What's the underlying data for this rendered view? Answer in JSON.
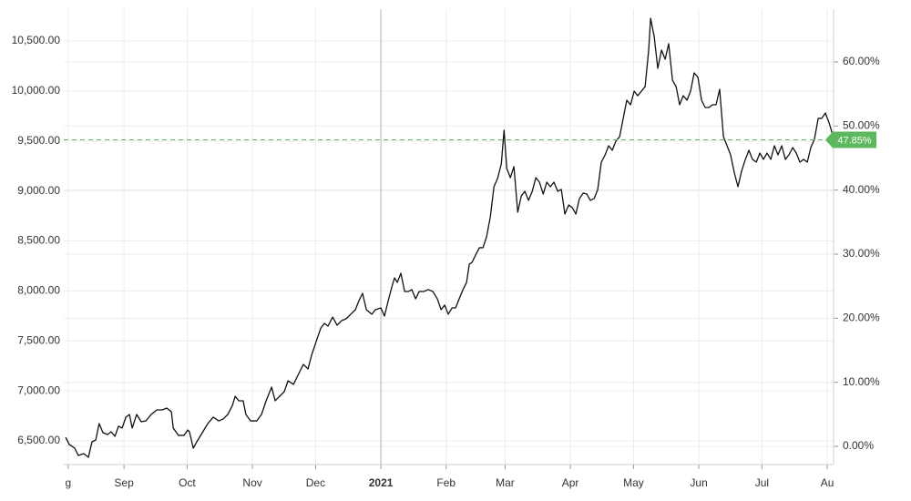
{
  "chart_data": {
    "type": "line",
    "xlim": [
      2.4,
      368
    ],
    "ylim": [
      6263,
      10819
    ],
    "y2lim": [
      -2.84,
      68.25
    ],
    "grid": true,
    "xticks": [
      {
        "value": 4.5,
        "label": "g"
      },
      {
        "value": 31,
        "label": "Sep"
      },
      {
        "value": 61,
        "label": "Oct"
      },
      {
        "value": 92,
        "label": "Nov"
      },
      {
        "value": 122,
        "label": "Dec"
      },
      {
        "value": 153,
        "label": "2021"
      },
      {
        "value": 184,
        "label": "Feb"
      },
      {
        "value": 212,
        "label": "Mar"
      },
      {
        "value": 243,
        "label": "Apr"
      },
      {
        "value": 273,
        "label": "May"
      },
      {
        "value": 304,
        "label": "Jun"
      },
      {
        "value": 334,
        "label": "Jul"
      },
      {
        "value": 365,
        "label": "Au"
      }
    ],
    "yticks": [
      {
        "value": 6500,
        "label": "6,500.00"
      },
      {
        "value": 7000,
        "label": "7,000.00"
      },
      {
        "value": 7500,
        "label": "7,500.00"
      },
      {
        "value": 8000,
        "label": "8,000.00"
      },
      {
        "value": 8500,
        "label": "8,500.00"
      },
      {
        "value": 9000,
        "label": "9,000.00"
      },
      {
        "value": 9500,
        "label": "9,500.00"
      },
      {
        "value": 10000,
        "label": "10,000.00"
      },
      {
        "value": 10500,
        "label": "10,500.00"
      }
    ],
    "y2ticks": [
      {
        "value": 0,
        "label": "0.00%"
      },
      {
        "value": 10,
        "label": "10.00%"
      },
      {
        "value": 20,
        "label": "20.00%"
      },
      {
        "value": 30,
        "label": "30.00%"
      },
      {
        "value": 40,
        "label": "40.00%"
      },
      {
        "value": 50,
        "label": "50.00%"
      },
      {
        "value": 60,
        "label": "60.00%"
      }
    ],
    "reference": {
      "value": 47.85,
      "label": "47.85%",
      "axis": "y2",
      "color": "#5cb85c"
    },
    "x": [
      3.3,
      5.0,
      7.6,
      9.3,
      11.9,
      14.1,
      15.8,
      17.6,
      19.2,
      21.0,
      23.2,
      24.9,
      26.7,
      28.4,
      30.1,
      31.9,
      33.6,
      34.9,
      37.0,
      39.2,
      41.4,
      43.9,
      46.6,
      49.2,
      51.3,
      53.5,
      54.4,
      56.9,
      59.5,
      61.3,
      62.1,
      63.9,
      65.6,
      68.2,
      70.8,
      73.4,
      76.0,
      78.1,
      80.3,
      82.5,
      83.8,
      85.5,
      87.6,
      88.9,
      91.1,
      94.1,
      96.3,
      98.5,
      101.1,
      102.8,
      104.9,
      107.1,
      108.9,
      111.5,
      113.6,
      116.2,
      118.4,
      120.1,
      122.7,
      124.5,
      126.2,
      127.9,
      130.1,
      132.2,
      134.4,
      136.5,
      138.7,
      140.9,
      142.6,
      144.3,
      146.1,
      148.7,
      150.4,
      153.0,
      154.7,
      156.5,
      158.2,
      159.5,
      160.8,
      162.5,
      164.3,
      166.0,
      167.7,
      169.5,
      171.2,
      173.4,
      175.5,
      177.7,
      179.8,
      181.6,
      183.3,
      185.0,
      186.8,
      188.5,
      190.2,
      192.0,
      193.7,
      195.0,
      196.3,
      198.0,
      199.8,
      201.5,
      203.2,
      205.0,
      206.7,
      208.4,
      210.2,
      211.5,
      212.8,
      214.5,
      216.2,
      218.0,
      219.7,
      221.4,
      223.1,
      224.9,
      226.6,
      228.3,
      230.1,
      231.8,
      233.5,
      235.2,
      237.0,
      238.7,
      240.4,
      242.2,
      243.9,
      245.6,
      247.3,
      249.1,
      250.8,
      252.5,
      254.3,
      256.0,
      257.7,
      259.5,
      261.2,
      262.9,
      264.6,
      266.4,
      268.1,
      269.8,
      271.6,
      273.3,
      275.0,
      276.8,
      278.5,
      280.2,
      281.1,
      282.8,
      284.5,
      286.3,
      288.0,
      289.7,
      291.5,
      293.2,
      294.9,
      296.6,
      298.4,
      300.1,
      301.8,
      303.6,
      305.3,
      307.0,
      308.8,
      310.5,
      312.2,
      313.9,
      315.7,
      317.4,
      319.1,
      320.9,
      322.6,
      324.3,
      326.1,
      327.8,
      329.5,
      331.3,
      333.0,
      334.7,
      336.4,
      338.2,
      339.9,
      341.6,
      343.4,
      345.1,
      346.8,
      348.6,
      350.3,
      352.0,
      353.8,
      355.5,
      357.2,
      358.9,
      360.7,
      362.4,
      364.1,
      365.9,
      367.6
    ],
    "series": [
      {
        "color": "#111111",
        "values": [
          6536,
          6464,
          6427,
          6354,
          6372,
          6336,
          6491,
          6509,
          6673,
          6582,
          6564,
          6591,
          6546,
          6646,
          6628,
          6737,
          6764,
          6628,
          6764,
          6691,
          6700,
          6764,
          6810,
          6810,
          6828,
          6792,
          6628,
          6555,
          6555,
          6609,
          6591,
          6427,
          6491,
          6582,
          6673,
          6737,
          6700,
          6719,
          6764,
          6855,
          6946,
          6901,
          6901,
          6764,
          6700,
          6700,
          6764,
          6901,
          7038,
          6901,
          6946,
          6992,
          7101,
          7065,
          7156,
          7265,
          7220,
          7357,
          7521,
          7630,
          7675,
          7648,
          7739,
          7657,
          7703,
          7721,
          7767,
          7812,
          7903,
          7976,
          7812,
          7767,
          7812,
          7830,
          7748,
          7903,
          8040,
          8131,
          8085,
          8177,
          7994,
          7994,
          8013,
          7921,
          7994,
          7994,
          8013,
          7994,
          7921,
          7812,
          7858,
          7767,
          7830,
          7830,
          7921,
          8013,
          8085,
          8268,
          8286,
          8359,
          8432,
          8432,
          8541,
          8742,
          9042,
          9124,
          9270,
          9607,
          9224,
          9133,
          9243,
          8787,
          8951,
          8997,
          8906,
          8997,
          9133,
          9088,
          8969,
          9088,
          9042,
          9088,
          8997,
          9015,
          8769,
          8860,
          8833,
          8769,
          8924,
          8979,
          8969,
          8906,
          8924,
          9015,
          9288,
          9361,
          9452,
          9407,
          9498,
          9543,
          9726,
          9908,
          9862,
          9999,
          9953,
          9999,
          10044,
          10409,
          10728,
          10546,
          10227,
          10409,
          10318,
          10473,
          10108,
          10044,
          9862,
          9953,
          9908,
          9999,
          10181,
          10136,
          9908,
          9835,
          9835,
          9862,
          9862,
          10017,
          9543,
          9452,
          9361,
          9179,
          9042,
          9197,
          9316,
          9407,
          9316,
          9288,
          9379,
          9316,
          9379,
          9316,
          9452,
          9361,
          9452,
          9316,
          9361,
          9434,
          9379,
          9288,
          9316,
          9288,
          9434,
          9516,
          9726,
          9726,
          9780,
          9680,
          9560
        ]
      }
    ]
  }
}
